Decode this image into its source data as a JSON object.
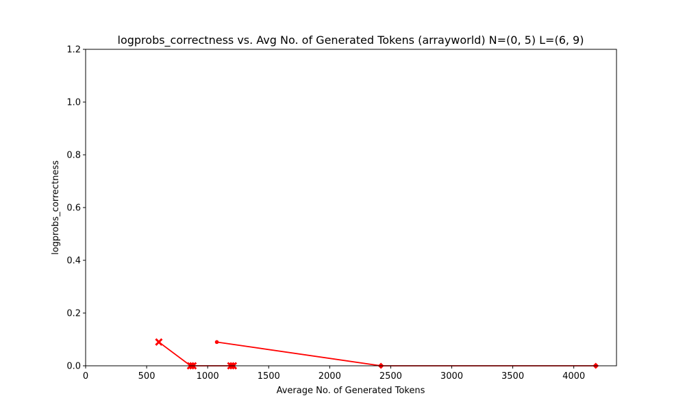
{
  "chart_data": {
    "type": "line",
    "title": "logprobs_correctness vs. Avg No. of Generated Tokens (arrayworld) N=(0, 5) L=(6, 9)",
    "xlabel": "Average No. of Generated Tokens",
    "ylabel": "logprobs_correctness",
    "xlim": [
      0,
      4350
    ],
    "ylim": [
      0,
      1.2
    ],
    "xticks": [
      0,
      500,
      1000,
      1500,
      2000,
      2500,
      3000,
      3500,
      4000
    ],
    "yticks": [
      0.0,
      0.2,
      0.4,
      0.6,
      0.8,
      1.0,
      1.2
    ],
    "grid": false,
    "color": "#ff0000",
    "series": [
      {
        "marker": "x-filled",
        "points": [
          [
            600,
            0.09
          ],
          [
            860,
            0.0
          ],
          [
            1190,
            0.0
          ]
        ]
      },
      {
        "marker": "point",
        "points": [
          [
            1075,
            0.09
          ],
          [
            2420,
            0.0
          ],
          [
            4180,
            0.0
          ]
        ]
      }
    ],
    "extra_markers": [
      {
        "marker": "x-filled",
        "x": 880,
        "y": 0.0
      },
      {
        "marker": "x-filled",
        "x": 1210,
        "y": 0.0
      },
      {
        "marker": "diamond",
        "x": 2420,
        "y": 0.0
      },
      {
        "marker": "diamond",
        "x": 4180,
        "y": 0.0
      }
    ]
  }
}
